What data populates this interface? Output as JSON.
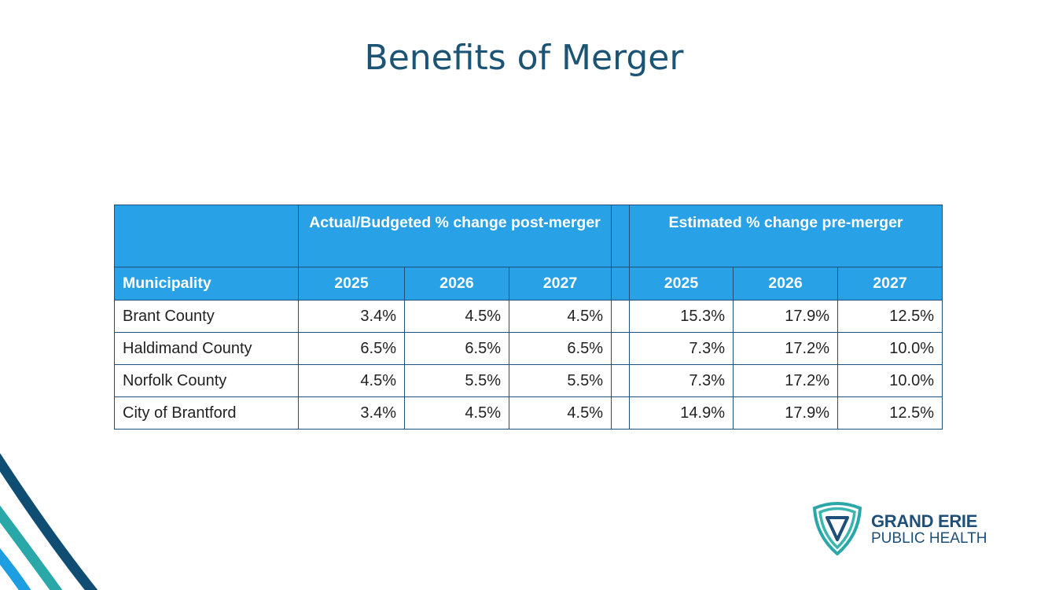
{
  "title": "Benefits of Merger",
  "table": {
    "group_headers": [
      "Actual/Budgeted % change post-merger",
      "Estimated % change pre-merger"
    ],
    "columns": [
      "Municipality",
      "2025",
      "2026",
      "2027",
      "2025",
      "2026",
      "2027"
    ],
    "rows": [
      {
        "name": "Brant County",
        "post": [
          "3.4%",
          "4.5%",
          "4.5%"
        ],
        "pre": [
          "15.3%",
          "17.9%",
          "12.5%"
        ]
      },
      {
        "name": "Haldimand County",
        "post": [
          "6.5%",
          "6.5%",
          "6.5%"
        ],
        "pre": [
          "7.3%",
          "17.2%",
          "10.0%"
        ]
      },
      {
        "name": "Norfolk County",
        "post": [
          "4.5%",
          "5.5%",
          "5.5%"
        ],
        "pre": [
          "7.3%",
          "17.2%",
          "10.0%"
        ]
      },
      {
        "name": "City of Brantford",
        "post": [
          "3.4%",
          "4.5%",
          "4.5%"
        ],
        "pre": [
          "14.9%",
          "17.9%",
          "12.5%"
        ]
      }
    ]
  },
  "logo": {
    "line1": "GRAND ERIE",
    "line2": "PUBLIC HEALTH"
  },
  "colors": {
    "header": "#28a1e6",
    "border": "#1d4f78",
    "title": "#1b5475",
    "teal": "#2aa7a8",
    "navy": "#0f4d73"
  }
}
